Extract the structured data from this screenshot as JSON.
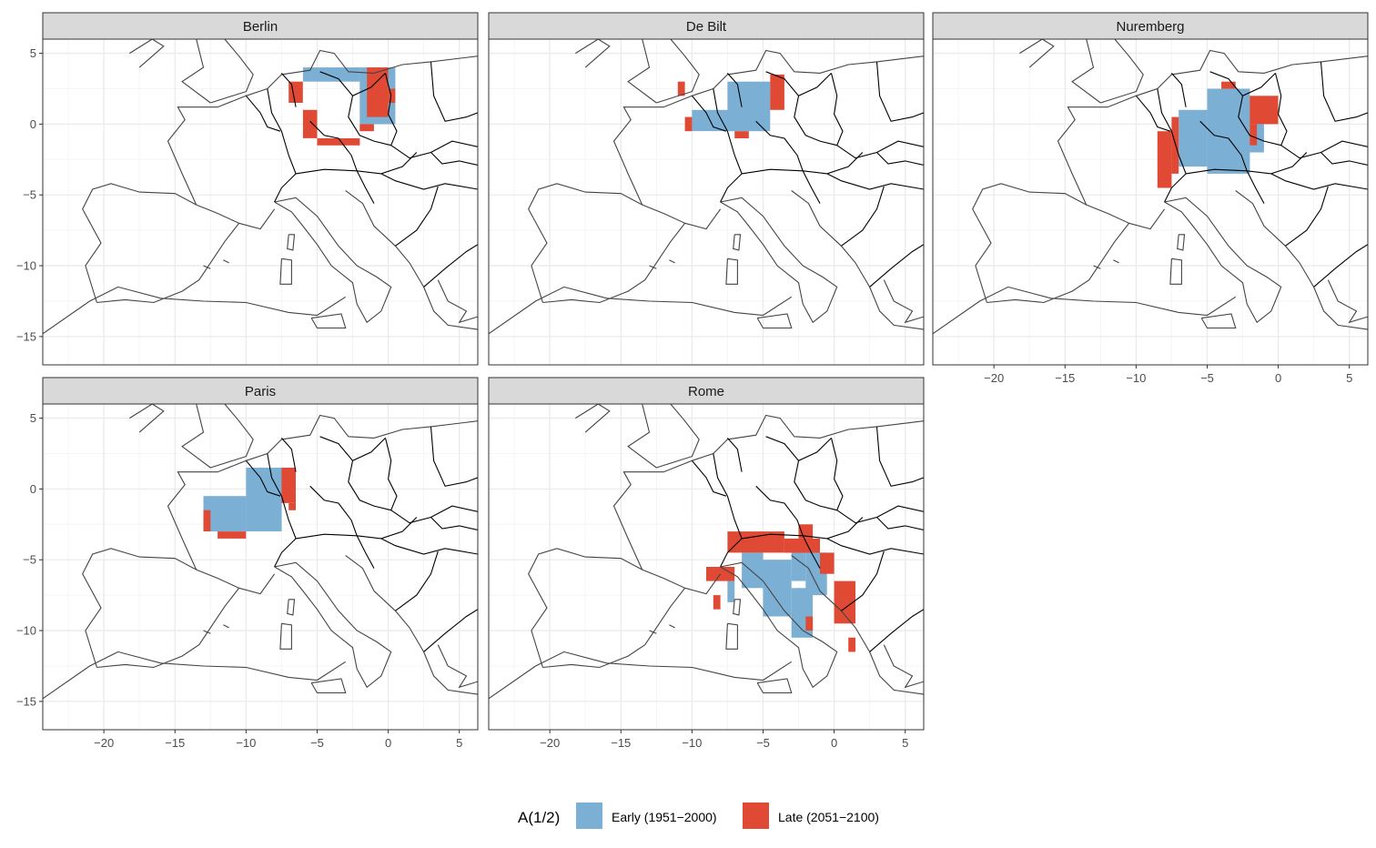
{
  "chart_data": {
    "type": "heatmap",
    "facets": [
      "Berlin",
      "De Bilt",
      "Nuremberg",
      "Paris",
      "Rome"
    ],
    "x_ticks": [
      -20,
      -15,
      -10,
      -5,
      0,
      5
    ],
    "x_tick_labels": [
      "−20",
      "−15",
      "−10",
      "−5",
      "0",
      "5"
    ],
    "y_ticks": [
      5,
      0,
      -5,
      -10,
      -15
    ],
    "y_tick_labels": [
      "5",
      "0",
      "−5",
      "−10",
      "−15"
    ],
    "xlim": [
      -24.3,
      6.3
    ],
    "ylim": [
      -17,
      6
    ],
    "grid": true,
    "background": "map outlines",
    "legend": {
      "title": "A(1/2)",
      "position": "bottom",
      "items": [
        {
          "label": "Early (1951−2000)",
          "color": "#7bafd4"
        },
        {
          "label": "Late (2051−2100)",
          "color": "#e04a35"
        }
      ]
    },
    "regions": {
      "Berlin": {
        "early": [
          [
            -6,
            -2,
            3,
            4
          ],
          [
            -2,
            0.5,
            0,
            4
          ]
        ],
        "late": [
          [
            -7,
            -6,
            1.5,
            3
          ],
          [
            -6,
            -5,
            -1,
            1
          ],
          [
            -5,
            -2,
            -1.5,
            -1
          ],
          [
            -2,
            -1,
            -0.5,
            0
          ],
          [
            -1.5,
            0,
            0.5,
            4
          ],
          [
            0,
            0.5,
            1.5,
            2.5
          ]
        ]
      },
      "De Bilt": {
        "early": [
          [
            -10,
            -7.5,
            -0.5,
            1
          ],
          [
            -7.5,
            -4.5,
            -0.5,
            3
          ]
        ],
        "late": [
          [
            -11,
            -10.5,
            2,
            3
          ],
          [
            -10.5,
            -10,
            -0.5,
            0.5
          ],
          [
            -7,
            -6,
            -1,
            -0.5
          ],
          [
            -4.5,
            -3.5,
            1,
            3.5
          ]
        ]
      },
      "Nuremberg": {
        "early": [
          [
            -7,
            -5,
            -3,
            1
          ],
          [
            -5,
            -2,
            -3.5,
            2.5
          ],
          [
            -2,
            -1,
            -2,
            0
          ]
        ],
        "late": [
          [
            -8.5,
            -7.5,
            -4.5,
            -0.5
          ],
          [
            -7.5,
            -7,
            -3.5,
            0.5
          ],
          [
            -4,
            -3,
            2.5,
            3
          ],
          [
            -2,
            0,
            0,
            2
          ],
          [
            -2,
            -1.5,
            -1.5,
            0
          ]
        ]
      },
      "Paris": {
        "early": [
          [
            -13,
            -10,
            -3,
            -0.5
          ],
          [
            -10,
            -7.5,
            -3,
            1.5
          ]
        ],
        "late": [
          [
            -13,
            -12.5,
            -3,
            -1.5
          ],
          [
            -12,
            -10,
            -3.5,
            -3
          ],
          [
            -7.5,
            -6.5,
            -1,
            1.5
          ],
          [
            -7,
            -6.5,
            -1.5,
            -1
          ]
        ]
      },
      "Rome": {
        "early": [
          [
            -6.5,
            -5,
            -7,
            -4.5
          ],
          [
            -5,
            -3,
            -9,
            -5
          ],
          [
            -3,
            -1.5,
            -10.5,
            -7
          ],
          [
            -3,
            -2,
            -6.5,
            -4.5
          ],
          [
            -2,
            -0.5,
            -7.5,
            -4.5
          ],
          [
            -7.5,
            -7,
            -8,
            -6.5
          ]
        ],
        "late": [
          [
            -9,
            -7,
            -6.5,
            -5.5
          ],
          [
            -7.5,
            -3.5,
            -4.5,
            -3
          ],
          [
            -3.5,
            -1,
            -4.5,
            -3.5
          ],
          [
            -2.5,
            -1.5,
            -3.5,
            -2.5
          ],
          [
            -1,
            0,
            -6,
            -4.5
          ],
          [
            0,
            1.5,
            -9.5,
            -6.5
          ],
          [
            1,
            1.5,
            -11.5,
            -10.5
          ],
          [
            -2,
            -1.5,
            -10,
            -9
          ],
          [
            -8.5,
            -8,
            -8.5,
            -7.5
          ]
        ]
      }
    }
  },
  "colors": {
    "early": "#7bafd4",
    "late": "#e04a35",
    "strip_bg": "#d9d9d9",
    "grid_major": "#ebebeb",
    "grid_minor": "#f5f5f5",
    "outline": "#000000",
    "coast": "#444444",
    "axis_text": "#4d4d4d"
  }
}
